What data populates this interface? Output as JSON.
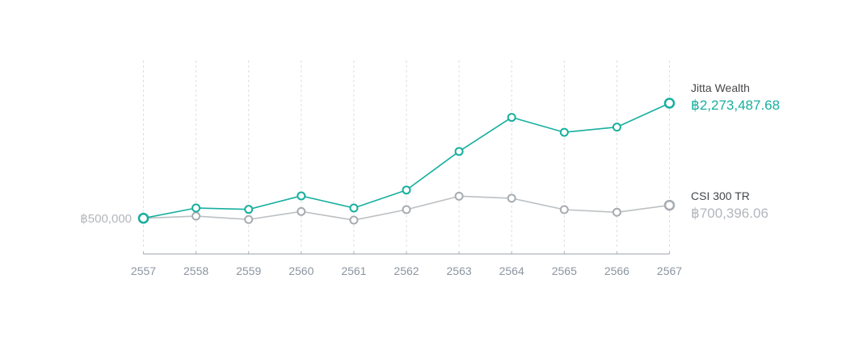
{
  "chart_data": {
    "type": "line",
    "title": "",
    "categories": [
      "2557",
      "2558",
      "2559",
      "2560",
      "2561",
      "2562",
      "2563",
      "2564",
      "2565",
      "2566",
      "2567"
    ],
    "series": [
      {
        "name": "CSI 300 TR",
        "color": "#bcc0c3",
        "marker_stroke": "#a7acb1",
        "values": [
          500000,
          533000,
          481000,
          604000,
          471000,
          633000,
          840000,
          808000,
          633000,
          592000,
          700396.06
        ],
        "final_value_label": "฿700,396.06"
      },
      {
        "name": "Jitta Wealth",
        "color": "#17af9f",
        "marker_stroke": "#17af9f",
        "values": [
          500000,
          658000,
          637000,
          845000,
          658000,
          935000,
          1530000,
          2055000,
          1825000,
          1905000,
          2273487.68
        ],
        "final_value_label": "฿2,273,487.68"
      }
    ],
    "baseline": {
      "label": "฿500,000",
      "value": 500000
    },
    "xlabel": "",
    "ylabel": "",
    "ylim_estimate": [
      -50000,
      2930000
    ],
    "grid": "vertical-dashed",
    "legend_position": "right"
  },
  "legend": [
    {
      "name": "Jitta Wealth",
      "value": "฿2,273,487.68",
      "value_color": "#17af9f"
    },
    {
      "name": "CSI 300 TR",
      "value": "฿700,396.06",
      "value_color": "#b2b7bc"
    }
  ],
  "colors": {
    "accent_teal": "#17af9f",
    "benchmark_gray": "#bcc0c3",
    "axis_text": "#8c95a0",
    "muted_text": "#b2b7bc",
    "dark_text": "#45474a"
  }
}
